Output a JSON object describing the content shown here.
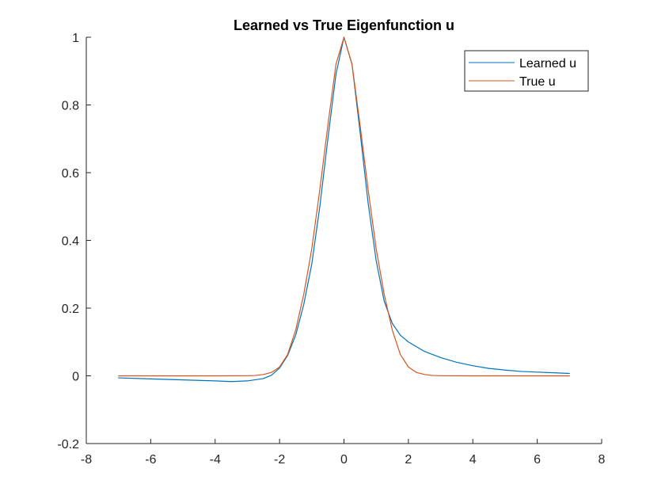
{
  "chart_data": {
    "type": "line",
    "title": "Learned vs True Eigenfunction u",
    "xlabel": "",
    "ylabel": "",
    "xlim": [
      -8,
      8
    ],
    "ylim": [
      -0.2,
      1
    ],
    "xticks": [
      -8,
      -6,
      -4,
      -2,
      0,
      2,
      4,
      6,
      8
    ],
    "yticks": [
      -0.2,
      0,
      0.2,
      0.4,
      0.6,
      0.8,
      1
    ],
    "xtick_labels": [
      "-8",
      "-6",
      "-4",
      "-2",
      "0",
      "2",
      "4",
      "6",
      "8"
    ],
    "ytick_labels": [
      "-0.2",
      "0",
      "0.2",
      "0.4",
      "0.6",
      "0.8",
      "1"
    ],
    "grid": false,
    "legend_position": "top-right",
    "series": [
      {
        "name": "Learned u",
        "color": "#0072BD",
        "points": [
          [
            -7,
            -0.006
          ],
          [
            -6,
            -0.009
          ],
          [
            -5,
            -0.012
          ],
          [
            -4,
            -0.015
          ],
          [
            -3.5,
            -0.017
          ],
          [
            -3,
            -0.015
          ],
          [
            -2.5,
            -0.008
          ],
          [
            -2.25,
            0.002
          ],
          [
            -2,
            0.023
          ],
          [
            -1.75,
            0.06
          ],
          [
            -1.5,
            0.12
          ],
          [
            -1.25,
            0.21
          ],
          [
            -1,
            0.33
          ],
          [
            -0.75,
            0.5
          ],
          [
            -0.5,
            0.7
          ],
          [
            -0.25,
            0.89
          ],
          [
            0,
            1.0
          ],
          [
            0.25,
            0.92
          ],
          [
            0.5,
            0.72
          ],
          [
            0.75,
            0.51
          ],
          [
            1,
            0.34
          ],
          [
            1.25,
            0.22
          ],
          [
            1.5,
            0.155
          ],
          [
            1.75,
            0.12
          ],
          [
            2,
            0.1
          ],
          [
            2.5,
            0.072
          ],
          [
            3,
            0.054
          ],
          [
            3.5,
            0.04
          ],
          [
            4,
            0.03
          ],
          [
            4.5,
            0.022
          ],
          [
            5,
            0.017
          ],
          [
            5.5,
            0.013
          ],
          [
            6,
            0.011
          ],
          [
            6.5,
            0.009
          ],
          [
            7,
            0.007
          ]
        ]
      },
      {
        "name": "True u",
        "color": "#D95319",
        "points": [
          [
            -7,
            0
          ],
          [
            -6,
            0
          ],
          [
            -5,
            0
          ],
          [
            -4,
            0
          ],
          [
            -3,
            0.0005
          ],
          [
            -2.75,
            0.001
          ],
          [
            -2.5,
            0.004
          ],
          [
            -2.25,
            0.01
          ],
          [
            -2,
            0.026
          ],
          [
            -1.75,
            0.063
          ],
          [
            -1.5,
            0.135
          ],
          [
            -1.25,
            0.24
          ],
          [
            -1,
            0.375
          ],
          [
            -0.75,
            0.55
          ],
          [
            -0.5,
            0.74
          ],
          [
            -0.25,
            0.92
          ],
          [
            0,
            1.0
          ],
          [
            0.25,
            0.92
          ],
          [
            0.5,
            0.74
          ],
          [
            0.75,
            0.55
          ],
          [
            1,
            0.375
          ],
          [
            1.25,
            0.24
          ],
          [
            1.5,
            0.135
          ],
          [
            1.75,
            0.063
          ],
          [
            2,
            0.026
          ],
          [
            2.25,
            0.01
          ],
          [
            2.5,
            0.004
          ],
          [
            2.75,
            0.001
          ],
          [
            3,
            0.0005
          ],
          [
            4,
            0
          ],
          [
            5,
            0
          ],
          [
            6,
            0
          ],
          [
            7,
            0
          ]
        ]
      }
    ]
  }
}
